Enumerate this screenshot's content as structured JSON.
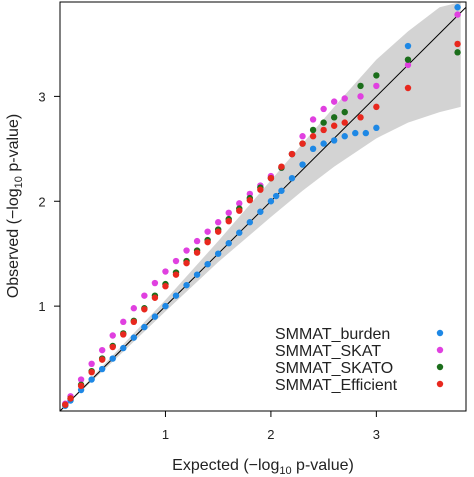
{
  "chart_data": {
    "type": "scatter",
    "xlim": [
      0,
      3.85
    ],
    "ylim": [
      0,
      3.9
    ],
    "x_ticks": [
      1,
      2,
      3
    ],
    "y_ticks": [
      1,
      2,
      3
    ],
    "x_tick_labels": [
      "1",
      "2",
      "3"
    ],
    "y_tick_labels": [
      "1",
      "2",
      "3"
    ],
    "xlabel_pre": "Expected (−log",
    "xlabel_sub": "10",
    "xlabel_post": " p-value)",
    "ylabel_pre": "Observed (−log",
    "ylabel_sub": "10",
    "ylabel_post": " p-value)",
    "grid": false,
    "legend_position": "bottom-right",
    "reference_line": {
      "from": [
        0,
        0
      ],
      "to": [
        3.85,
        3.85
      ]
    },
    "confidence_band": {
      "x": [
        0.0,
        0.5,
        1.0,
        1.5,
        2.0,
        2.3,
        2.6,
        3.0,
        3.3,
        3.6,
        3.8
      ],
      "lower": [
        0.0,
        0.47,
        0.95,
        1.42,
        1.85,
        2.1,
        2.33,
        2.6,
        2.75,
        2.85,
        2.9
      ],
      "upper": [
        0.0,
        0.53,
        1.06,
        1.62,
        2.2,
        2.55,
        2.9,
        3.35,
        3.62,
        3.85,
        3.9
      ]
    },
    "series": [
      {
        "name": "SMMAT_burden",
        "color": "#1e88e5",
        "x": [
          0.05,
          0.1,
          0.2,
          0.3,
          0.4,
          0.5,
          0.6,
          0.7,
          0.8,
          0.9,
          1.0,
          1.1,
          1.2,
          1.3,
          1.4,
          1.5,
          1.6,
          1.7,
          1.8,
          1.9,
          2.0,
          2.05,
          2.1,
          2.2,
          2.3,
          2.4,
          2.5,
          2.6,
          2.7,
          2.8,
          2.9,
          3.0,
          3.3,
          3.77
        ],
        "y": [
          0.05,
          0.1,
          0.2,
          0.3,
          0.4,
          0.5,
          0.6,
          0.7,
          0.8,
          0.9,
          1.0,
          1.1,
          1.2,
          1.3,
          1.4,
          1.5,
          1.6,
          1.7,
          1.8,
          1.9,
          2.0,
          2.05,
          2.1,
          2.22,
          2.35,
          2.5,
          2.55,
          2.58,
          2.62,
          2.65,
          2.65,
          2.7,
          3.48,
          3.85
        ]
      },
      {
        "name": "SMMAT_SKAT",
        "color": "#e040e0",
        "x": [
          0.05,
          0.1,
          0.2,
          0.3,
          0.4,
          0.5,
          0.6,
          0.7,
          0.8,
          0.9,
          1.0,
          1.1,
          1.2,
          1.3,
          1.4,
          1.5,
          1.6,
          1.7,
          1.8,
          1.9,
          2.0,
          2.1,
          2.2,
          2.3,
          2.4,
          2.5,
          2.6,
          2.7,
          2.85,
          3.0,
          3.3,
          3.77
        ],
        "y": [
          0.07,
          0.14,
          0.3,
          0.45,
          0.58,
          0.72,
          0.85,
          0.98,
          1.1,
          1.22,
          1.33,
          1.43,
          1.53,
          1.62,
          1.71,
          1.8,
          1.89,
          1.98,
          2.07,
          2.15,
          2.24,
          2.32,
          2.45,
          2.62,
          2.78,
          2.88,
          2.95,
          2.98,
          3.0,
          3.1,
          3.3,
          3.78
        ]
      },
      {
        "name": "SMMAT_SKATO",
        "color": "#1b6e1b",
        "x": [
          0.05,
          0.1,
          0.2,
          0.3,
          0.4,
          0.5,
          0.6,
          0.7,
          0.8,
          0.9,
          1.0,
          1.1,
          1.2,
          1.3,
          1.4,
          1.5,
          1.6,
          1.7,
          1.8,
          1.9,
          2.0,
          2.1,
          2.2,
          2.3,
          2.4,
          2.5,
          2.6,
          2.7,
          2.85,
          3.0,
          3.3,
          3.77
        ],
        "y": [
          0.06,
          0.12,
          0.25,
          0.38,
          0.5,
          0.62,
          0.74,
          0.86,
          0.98,
          1.1,
          1.21,
          1.32,
          1.43,
          1.53,
          1.63,
          1.73,
          1.83,
          1.93,
          2.03,
          2.13,
          2.22,
          2.32,
          2.45,
          2.55,
          2.68,
          2.75,
          2.8,
          2.85,
          3.1,
          3.2,
          3.35,
          3.42
        ]
      },
      {
        "name": "SMMAT_Efficient",
        "color": "#e8281e",
        "x": [
          0.05,
          0.1,
          0.2,
          0.3,
          0.4,
          0.5,
          0.6,
          0.7,
          0.8,
          0.9,
          1.0,
          1.1,
          1.2,
          1.3,
          1.4,
          1.5,
          1.6,
          1.7,
          1.8,
          1.9,
          2.0,
          2.1,
          2.2,
          2.3,
          2.4,
          2.5,
          2.6,
          2.7,
          2.85,
          3.0,
          3.3,
          3.77
        ],
        "y": [
          0.06,
          0.12,
          0.24,
          0.37,
          0.49,
          0.61,
          0.73,
          0.85,
          0.97,
          1.08,
          1.19,
          1.3,
          1.41,
          1.51,
          1.61,
          1.71,
          1.81,
          1.91,
          2.01,
          2.11,
          2.22,
          2.33,
          2.45,
          2.55,
          2.62,
          2.68,
          2.72,
          2.75,
          2.8,
          2.9,
          3.08,
          3.5
        ]
      }
    ]
  }
}
